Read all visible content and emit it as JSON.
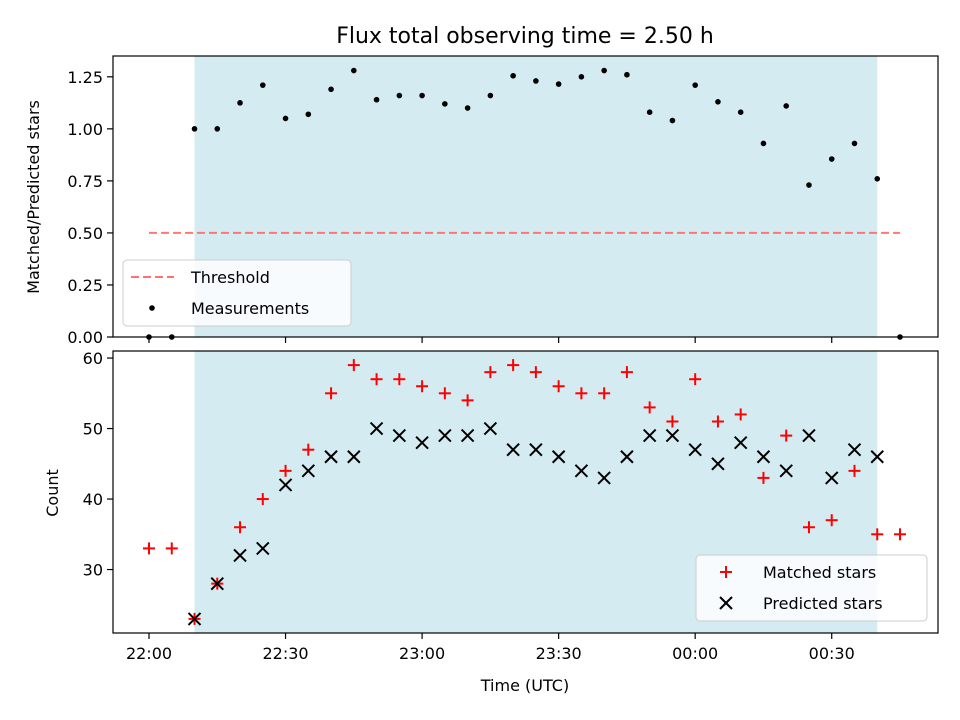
{
  "chart_data": [
    {
      "type": "scatter",
      "title": "Flux total observing time = 2.50 h",
      "xlabel": "",
      "ylabel": "Matched/Predicted stars",
      "ylim": [
        0,
        1.35
      ],
      "yticks": [
        "0.00",
        "0.25",
        "0.50",
        "0.75",
        "1.00",
        "1.25"
      ],
      "ytick_values": [
        0,
        0.25,
        0.5,
        0.75,
        1.0,
        1.25
      ],
      "grid": false,
      "legend_position": "lower-left",
      "shaded_interval": [
        "22:10",
        "00:40"
      ],
      "series": [
        {
          "name": "Threshold",
          "kind": "dashed-line",
          "color": "#ff7070",
          "x": [
            "22:00",
            "00:45"
          ],
          "y": [
            0.5,
            0.5
          ]
        },
        {
          "name": "Measurements",
          "kind": "dot",
          "color": "#000000",
          "x": [
            "22:00",
            "22:05",
            "22:10",
            "22:15",
            "22:20",
            "22:25",
            "22:30",
            "22:35",
            "22:40",
            "22:45",
            "22:50",
            "22:55",
            "23:00",
            "23:05",
            "23:10",
            "23:15",
            "23:20",
            "23:25",
            "23:30",
            "23:35",
            "23:40",
            "23:45",
            "23:50",
            "23:55",
            "00:00",
            "00:05",
            "00:10",
            "00:15",
            "00:20",
            "00:25",
            "00:30",
            "00:35",
            "00:40",
            "00:45"
          ],
          "y": [
            0.0,
            0.0,
            1.0,
            1.0,
            1.125,
            1.21,
            1.05,
            1.07,
            1.19,
            1.28,
            1.14,
            1.16,
            1.16,
            1.12,
            1.1,
            1.16,
            1.255,
            1.23,
            1.215,
            1.25,
            1.28,
            1.26,
            1.08,
            1.04,
            1.21,
            1.13,
            1.08,
            0.93,
            1.11,
            0.73,
            0.855,
            0.93,
            0.76,
            0.0
          ]
        }
      ]
    },
    {
      "type": "scatter",
      "title": "",
      "xlabel": "Time (UTC)",
      "ylabel": "Count",
      "ylim": [
        21,
        61
      ],
      "yticks": [
        "30",
        "40",
        "50",
        "60"
      ],
      "ytick_values": [
        30,
        40,
        50,
        60
      ],
      "xticks": [
        "22:00",
        "22:30",
        "23:00",
        "23:30",
        "00:00",
        "00:30"
      ],
      "grid": false,
      "legend_position": "lower-right",
      "shaded_interval": [
        "22:10",
        "00:40"
      ],
      "series": [
        {
          "name": "Matched stars",
          "kind": "plus",
          "color": "#ff0000",
          "x": [
            "22:00",
            "22:05",
            "22:10",
            "22:15",
            "22:20",
            "22:25",
            "22:30",
            "22:35",
            "22:40",
            "22:45",
            "22:50",
            "22:55",
            "23:00",
            "23:05",
            "23:10",
            "23:15",
            "23:20",
            "23:25",
            "23:30",
            "23:35",
            "23:40",
            "23:45",
            "23:50",
            "23:55",
            "00:00",
            "00:05",
            "00:10",
            "00:15",
            "00:20",
            "00:25",
            "00:30",
            "00:35",
            "00:40",
            "00:45"
          ],
          "y": [
            33,
            33,
            23,
            28,
            36,
            40,
            44,
            47,
            55,
            59,
            57,
            57,
            56,
            55,
            54,
            58,
            59,
            58,
            56,
            55,
            55,
            58,
            53,
            51,
            57,
            51,
            52,
            43,
            49,
            36,
            37,
            44,
            35,
            35
          ]
        },
        {
          "name": "Predicted stars",
          "kind": "cross",
          "color": "#000000",
          "x": [
            "22:10",
            "22:15",
            "22:20",
            "22:25",
            "22:30",
            "22:35",
            "22:40",
            "22:45",
            "22:50",
            "22:55",
            "23:00",
            "23:05",
            "23:10",
            "23:15",
            "23:20",
            "23:25",
            "23:30",
            "23:35",
            "23:40",
            "23:45",
            "23:50",
            "23:55",
            "00:00",
            "00:05",
            "00:10",
            "00:15",
            "00:20",
            "00:25",
            "00:30",
            "00:35",
            "00:40"
          ],
          "y": [
            23,
            28,
            32,
            33,
            42,
            44,
            46,
            46,
            50,
            49,
            48,
            49,
            49,
            50,
            47,
            47,
            46,
            44,
            43,
            46,
            49,
            49,
            47,
            45,
            48,
            46,
            44,
            49,
            43,
            47,
            46
          ]
        }
      ]
    }
  ]
}
